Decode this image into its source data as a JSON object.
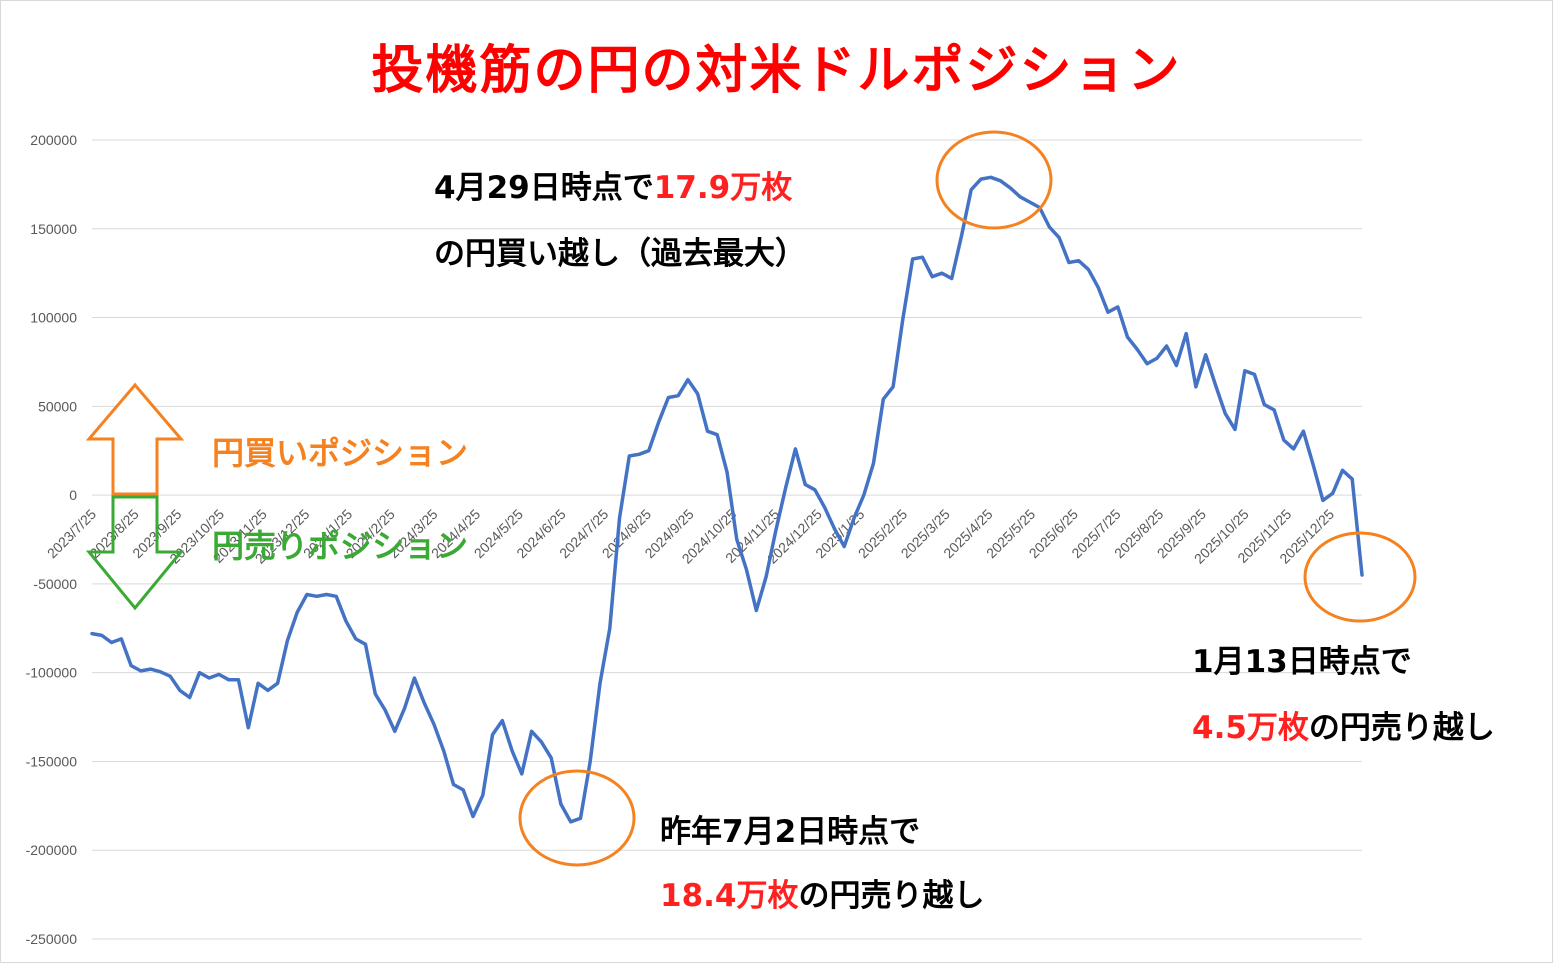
{
  "title": "投機筋の円の対米ドルポジション",
  "legend": {
    "buy": "円買いポジション",
    "sell": "円売りポジション",
    "buy_color": "#f58220",
    "sell_color": "#3aaa35"
  },
  "annotations": {
    "peak_line1_prefix": "4月29日時点で",
    "peak_line1_value": "17.9万枚",
    "peak_line2": "の円買い越し（過去最大）",
    "low_line1": "昨年7月2日時点で",
    "low_line2_value": "18.4万枚",
    "low_line2_suffix": "の円売り越し",
    "last_line1": "1月13日時点で",
    "last_line2_value": "4.5万枚",
    "last_line2_suffix": "の円売り越し",
    "circle_color": "#f58220"
  },
  "chart_data": {
    "type": "line",
    "line_color": "#4472c4",
    "grid": true,
    "ylim": [
      -250000,
      200000
    ],
    "yticks": [
      "200000",
      "150000",
      "100000",
      "50000",
      "0",
      "-50000",
      "-100000",
      "-150000",
      "-200000",
      "-250000"
    ],
    "xticks": [
      "2023/7/25",
      "2023/8/25",
      "2023/9/25",
      "2023/10/25",
      "2023/11/25",
      "2023/12/25",
      "2024/1/25",
      "2024/2/25",
      "2024/3/25",
      "2024/4/25",
      "2024/5/25",
      "2024/6/25",
      "2024/7/25",
      "2024/8/25",
      "2024/9/25",
      "2024/10/25",
      "2024/11/25",
      "2024/12/25",
      "2025/1/25",
      "2025/2/25",
      "2025/3/25",
      "2025/4/25",
      "2025/5/25",
      "2025/6/25",
      "2025/7/25",
      "2025/8/25",
      "2025/9/25",
      "2025/10/25",
      "2025/11/25",
      "2025/12/25"
    ],
    "xlabel": "",
    "ylabel": "",
    "series": [
      {
        "values": [
          -78000,
          -79000,
          -83000,
          -81000,
          -96000,
          -99000,
          -98000,
          -99500,
          -102000,
          -110000,
          -114000,
          -100000,
          -103000,
          -101000,
          -104000,
          -104000,
          -131000,
          -106000,
          -110000,
          -106000,
          -82000,
          -66000,
          -56000,
          -57000,
          -56000,
          -57000,
          -71000,
          -81000,
          -84000,
          -112000,
          -121000,
          -133000,
          -120000,
          -103000,
          -117000,
          -129000,
          -144000,
          -163000,
          -166000,
          -181000,
          -169000,
          -135000,
          -127000,
          -144000,
          -157000,
          -133000,
          -139000,
          -148000,
          -174000,
          -184000,
          -182000,
          -150000,
          -106000,
          -75000,
          -13000,
          22000,
          23000,
          25000,
          41000,
          55000,
          56000,
          65000,
          57000,
          36000,
          34000,
          13000,
          -25000,
          -42000,
          -65000,
          -46000,
          -20000,
          4000,
          26000,
          6000,
          3000,
          -7000,
          -19000,
          -29000,
          -13000,
          0,
          18000,
          54000,
          61000,
          99000,
          133000,
          134000,
          123000,
          125000,
          122000,
          146000,
          172000,
          178000,
          179000,
          177000,
          173000,
          168000,
          165000,
          162000,
          151000,
          145000,
          131000,
          132000,
          127000,
          117000,
          103000,
          106000,
          89000,
          82000,
          74000,
          77000,
          84000,
          73000,
          91000,
          61000,
          79000,
          62000,
          46000,
          37000,
          70000,
          68000,
          51000,
          48000,
          31000,
          26000,
          36000,
          17000,
          -3000,
          1000,
          14000,
          9000,
          -45000
        ]
      }
    ]
  }
}
